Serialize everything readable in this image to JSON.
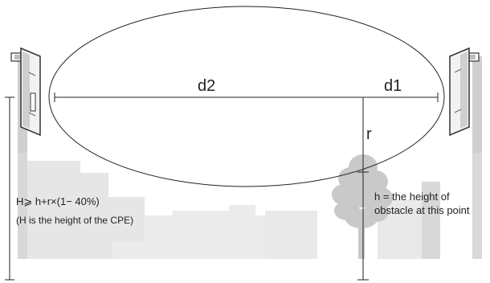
{
  "labels": {
    "d2": "d2",
    "d1": "d1",
    "r": "r",
    "h_note_line1": "h = the height of",
    "h_note_line2": "obstacle at this point",
    "H_formula": "H⩾ h+r×(1− 40%)",
    "H_note": "(H is the height of the CPE)"
  },
  "colors": {
    "line": "#222222",
    "building_light": "#e6e6e6",
    "building_mid": "#d0d0d0",
    "tree": "#c9c9c9",
    "pole": "#9a9a9a",
    "cpe_body": "#f2f2f2",
    "cpe_edge": "#333333"
  },
  "icons": {
    "left_device": "cpe-antenna-icon",
    "right_device": "cpe-antenna-icon",
    "obstacle": "tree-icon"
  }
}
